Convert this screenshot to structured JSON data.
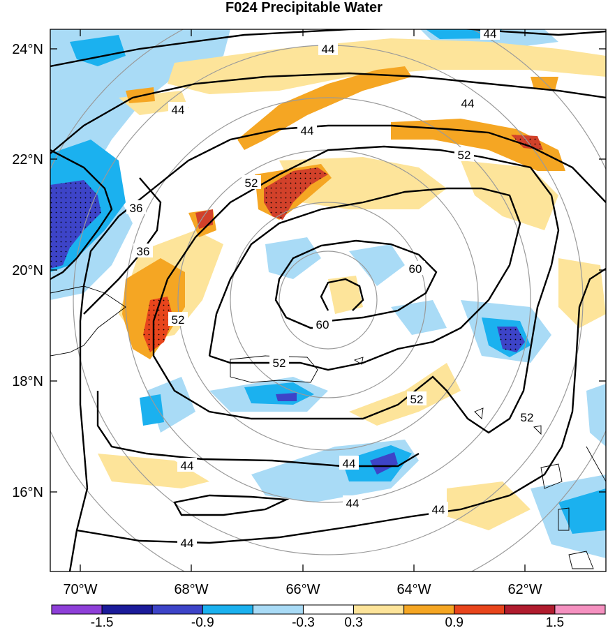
{
  "title": "F024 Precipitable Water",
  "map": {
    "lon_range": [
      -70.5,
      -60.5
    ],
    "lat_range": [
      14.5,
      24.5
    ],
    "lon_ticks": [
      "70°W",
      "68°W",
      "66°W",
      "64°W",
      "62°W"
    ],
    "lat_ticks": [
      "24°N",
      "22°N",
      "20°N",
      "18°N",
      "16°N"
    ],
    "contour_labels": [
      "44",
      "44",
      "44",
      "44",
      "44",
      "44",
      "44",
      "44",
      "44",
      "44",
      "36",
      "36",
      "52",
      "52",
      "52",
      "52",
      "52",
      "52",
      "60",
      "60"
    ],
    "colors": {
      "neg_strong": "#3d44c8",
      "neg_mid": "#1bb1ef",
      "neg_light": "#a9dbf6",
      "pos_light": "#fde49a",
      "pos_mid": "#f5a623",
      "pos_strong": "#d2412a"
    }
  },
  "colorbar": {
    "colors": [
      "#8e3fd8",
      "#1b1b9a",
      "#3d44c8",
      "#1bb1ef",
      "#a9dbf6",
      "#ffffff",
      "#fde49a",
      "#f5a623",
      "#e8451c",
      "#b01c2e",
      "#f591c0"
    ],
    "labels": [
      "-1.5",
      "-0.9",
      "-0.3",
      "0.3",
      "0.9",
      "1.5"
    ]
  }
}
